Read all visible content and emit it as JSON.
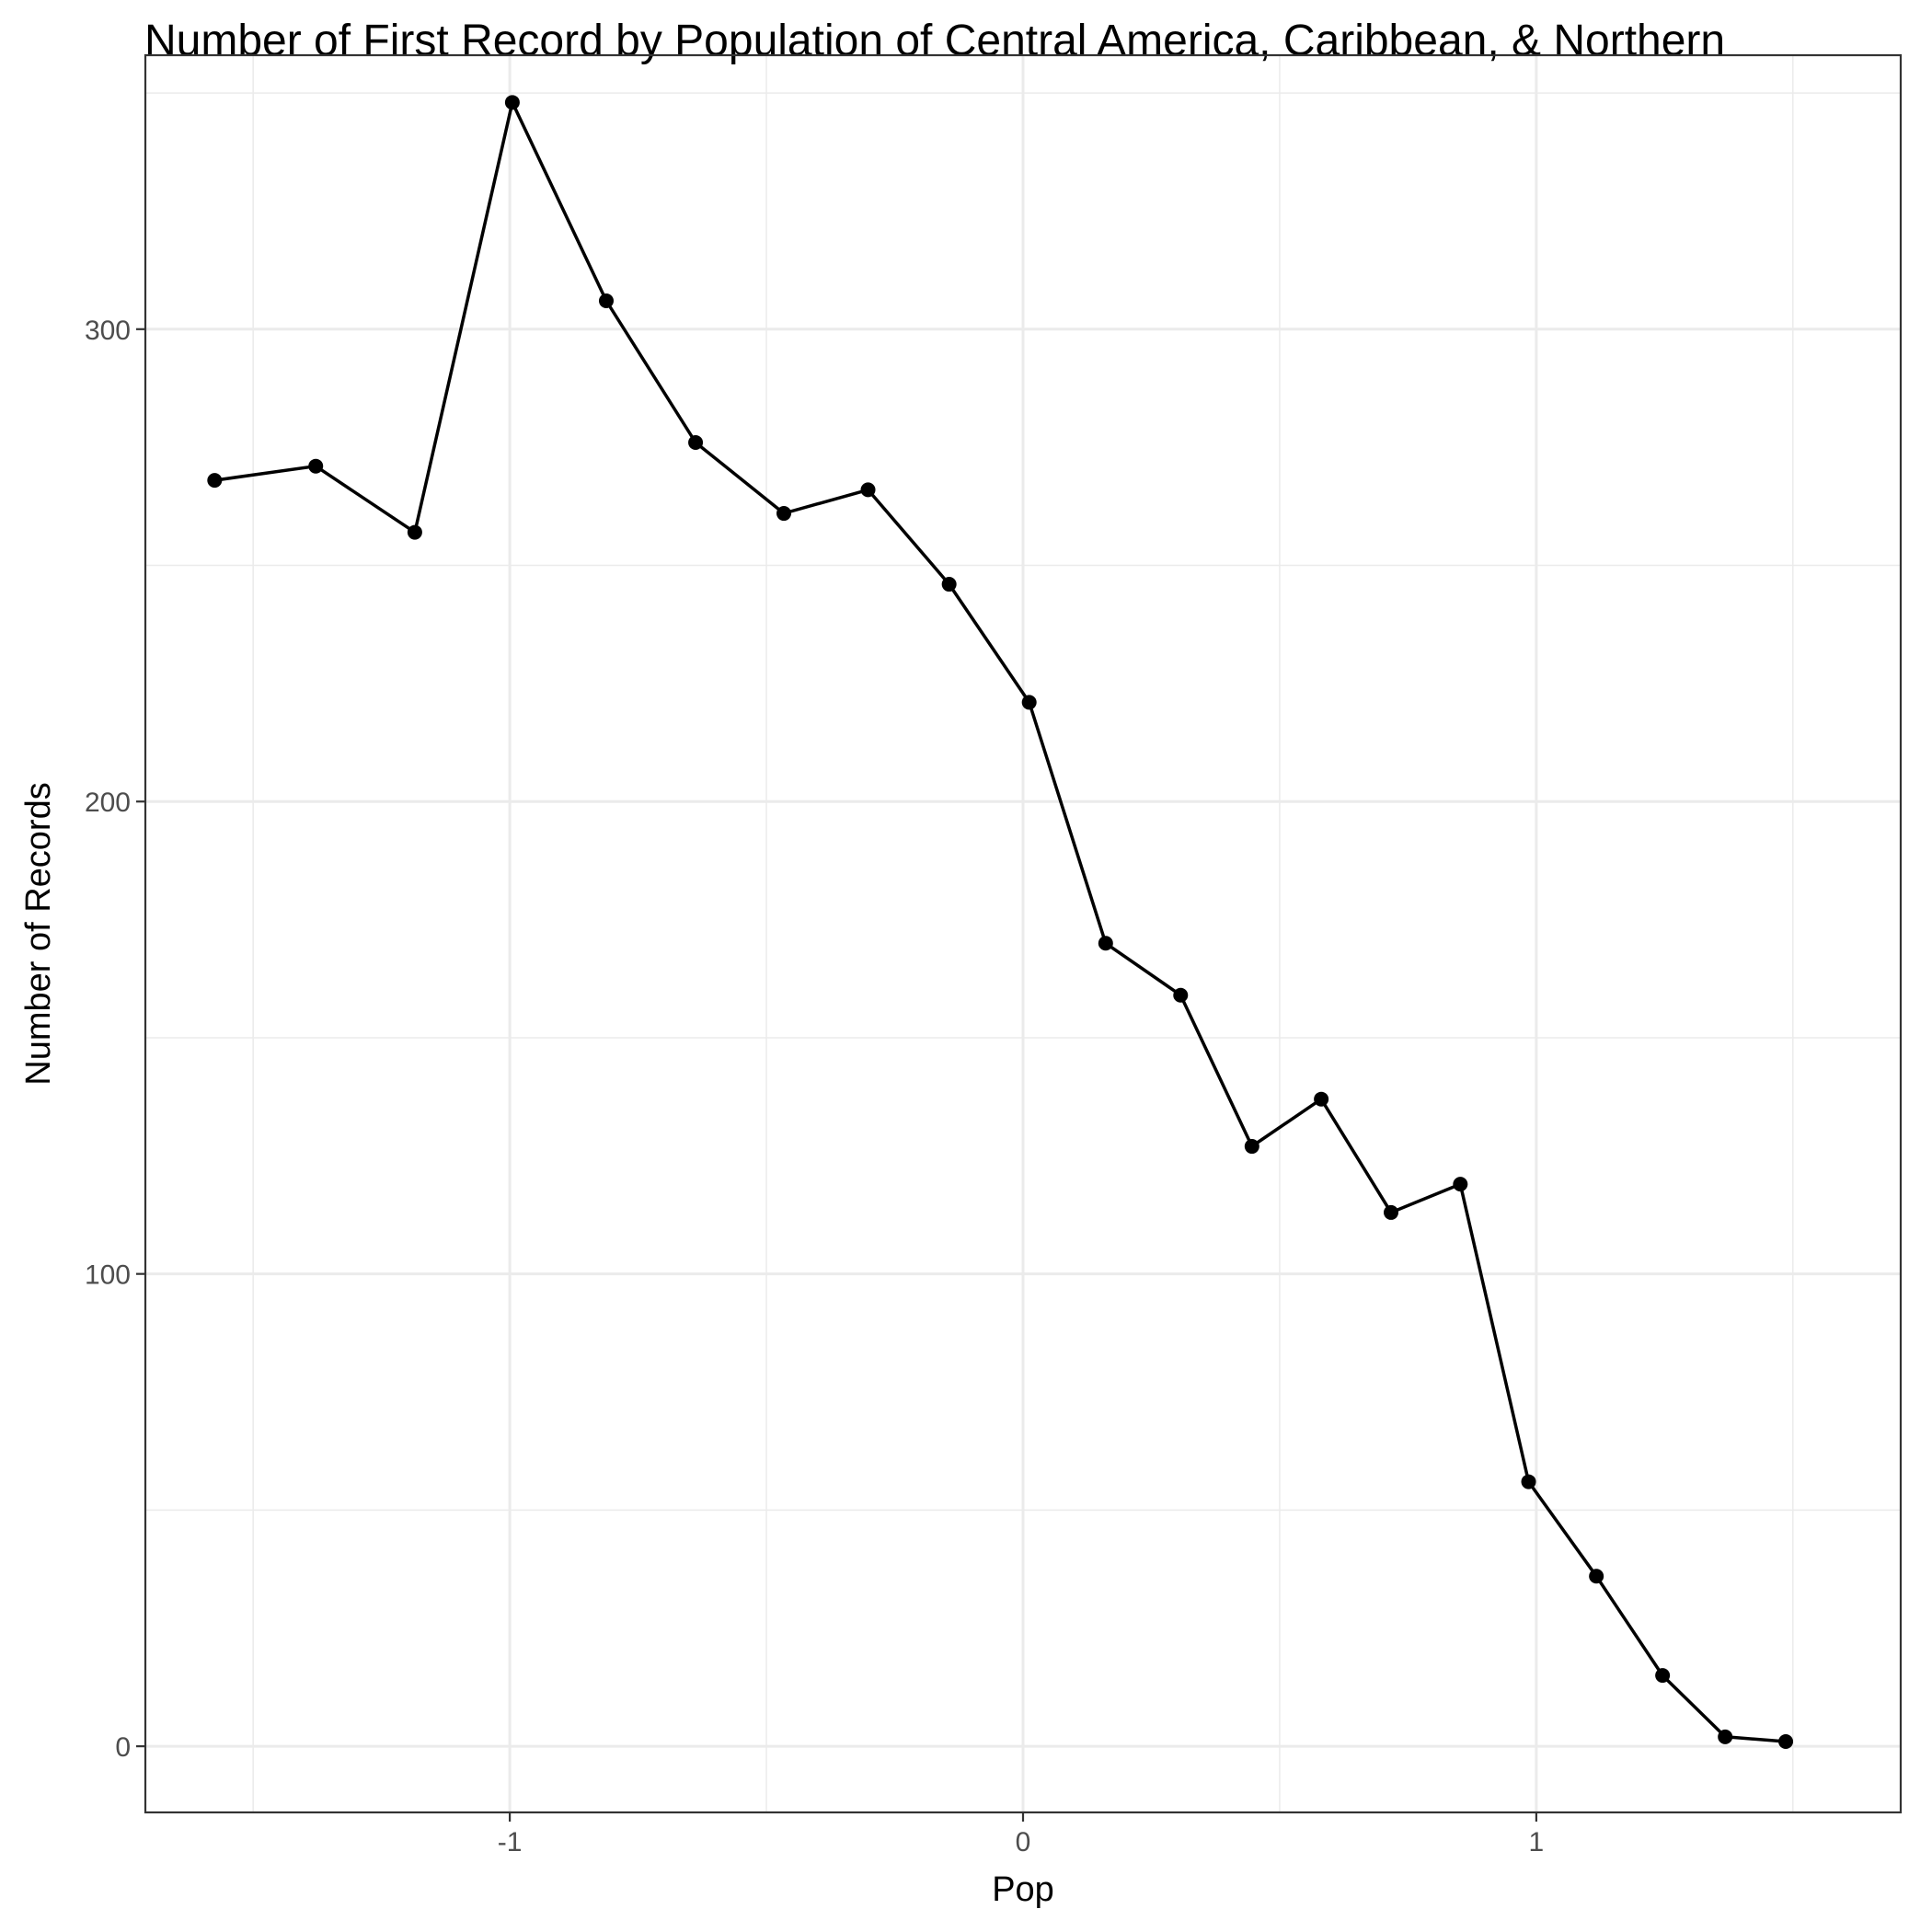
{
  "chart_data": {
    "type": "line",
    "title": "Number of First Record by Population of Central America, Caribbean, & Northern",
    "xlabel": "Pop",
    "ylabel": "Number of Records",
    "xlim": [
      -1.71,
      1.71
    ],
    "ylim": [
      -14,
      358
    ],
    "x_ticks": [
      -1,
      0,
      1
    ],
    "x_tick_labels": [
      "-1",
      "0",
      "1"
    ],
    "x_minor_ticks": [
      -1.5,
      -0.5,
      0.5,
      1.5
    ],
    "y_ticks": [
      0,
      100,
      200,
      300
    ],
    "y_tick_labels": [
      "0",
      "100",
      "200",
      "300"
    ],
    "y_minor_ticks": [
      50,
      150,
      250,
      350
    ],
    "grid": true,
    "legend": "none",
    "series": [
      {
        "x": [
          -1.575,
          -1.378,
          -1.185,
          -0.995,
          -0.812,
          -0.638,
          -0.466,
          -0.302,
          -0.144,
          0.012,
          0.161,
          0.307,
          0.446,
          0.581,
          0.717,
          0.852,
          0.985,
          1.117,
          1.246,
          1.368,
          1.486
        ],
        "y": [
          268,
          271,
          257,
          348,
          306,
          276,
          261,
          266,
          246,
          221,
          170,
          159,
          127,
          137,
          113,
          119,
          56,
          36,
          15,
          2,
          1
        ]
      }
    ],
    "colors": {
      "line": "#000000",
      "points": "#000000",
      "grid": "#ebebeb",
      "border": "#333333",
      "tick_text": "#4d4d4d"
    }
  }
}
